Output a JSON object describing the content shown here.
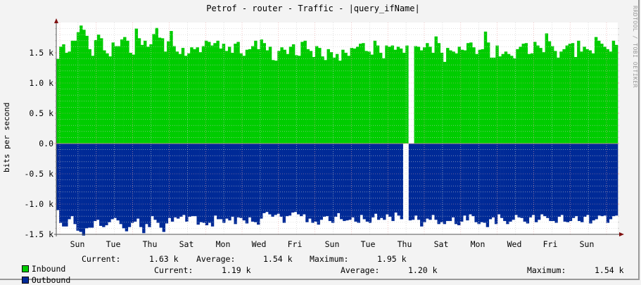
{
  "title": "Petrof - router - Traffic - |query_ifName|",
  "watermark": "RRDTOOL / TOBI OETIKER",
  "colors": {
    "inbound": "#00cc00",
    "outbound": "#002a97",
    "grid_major": "#e8a0a0",
    "grid_minor": "#cccccc",
    "axis": "#555555",
    "arrow": "#801010"
  },
  "legend": {
    "inbound": {
      "label": "Inbound",
      "current_label": "Current:",
      "current": "1.63 k",
      "average_label": "Average:",
      "average": "1.54 k",
      "maximum_label": "Maximum:",
      "maximum": "1.95 k"
    },
    "outbound": {
      "label": "Outbound",
      "current_label": "Current:",
      "current": "1.19 k",
      "average_label": "Average:",
      "average": "1.20 k",
      "maximum_label": "Maximum:",
      "maximum": "1.54 k"
    }
  },
  "chart_data": {
    "type": "area",
    "title": "Petrof - router - Traffic - |query_ifName|",
    "xlabel": "",
    "ylabel": "bits per second",
    "ylim": [
      -1500,
      1950
    ],
    "grid": true,
    "legend_position": "bottom",
    "y_ticks": [
      "1.5 k",
      "1.0 k",
      "0.5 k",
      "0.0",
      "-0.5 k",
      "-1.0 k",
      "-1.5 k"
    ],
    "y_tick_values": [
      1500,
      1000,
      500,
      0,
      -500,
      -1000,
      -1500
    ],
    "x_ticks": [
      "Sun",
      "Tue",
      "Thu",
      "Sat",
      "Mon",
      "Wed",
      "Fri",
      "Sun",
      "Tue",
      "Thu",
      "Sat",
      "Mon",
      "Wed",
      "Fri",
      "Sun"
    ],
    "gap_note": "data gap between Tue and Thu (second week)",
    "series": [
      {
        "name": "Inbound",
        "color": "#00cc00",
        "values": [
          1400,
          1600,
          1640,
          1500,
          1520,
          1700,
          1700,
          1840,
          1950,
          1880,
          1780,
          1560,
          1450,
          1710,
          1800,
          1740,
          1540,
          1490,
          1440,
          1670,
          1610,
          1610,
          1720,
          1760,
          1700,
          1500,
          1470,
          1900,
          1740,
          1630,
          1700,
          1600,
          1640,
          1810,
          1910,
          1750,
          1740,
          1520,
          1690,
          1860,
          1610,
          1520,
          1480,
          1580,
          1450,
          1490,
          1590,
          1560,
          1590,
          1510,
          1610,
          1700,
          1680,
          1620,
          1660,
          1700,
          1570,
          1650,
          1530,
          1600,
          1500,
          1650,
          1680,
          1490,
          1450,
          1550,
          1560,
          1610,
          1700,
          1560,
          1720,
          1660,
          1540,
          1600,
          1380,
          1370,
          1530,
          1590,
          1550,
          1480,
          1600,
          1640,
          1460,
          1450,
          1680,
          1700,
          1560,
          1530,
          1430,
          1610,
          1580,
          1440,
          1380,
          1560,
          1510,
          1420,
          1480,
          1370,
          1550,
          1500,
          1450,
          1580,
          1570,
          1600,
          1650,
          1660,
          1530,
          1520,
          1470,
          1700,
          1620,
          1500,
          1410,
          1620,
          1600,
          1620,
          1550,
          1600,
          1570,
          1500,
          1620,
          0,
          0,
          1610,
          1600,
          1540,
          1590,
          1660,
          1600,
          1500,
          1770,
          1660,
          1500,
          1350,
          1580,
          1540,
          1520,
          1490,
          1600,
          1550,
          1540,
          1660,
          1670,
          1590,
          1480,
          1550,
          1560,
          1850,
          1670,
          1420,
          1420,
          1620,
          1440,
          1480,
          1520,
          1480,
          1450,
          1410,
          1560,
          1600,
          1650,
          1660,
          1480,
          1490,
          1680,
          1620,
          1580,
          1510,
          1820,
          1690,
          1610,
          1530,
          1420,
          1520,
          1560,
          1620,
          1650,
          1660,
          1430,
          1700,
          1520,
          1600,
          1560,
          1540,
          1490,
          1760,
          1700,
          1650,
          1600,
          1560,
          1520,
          1700,
          1630
        ]
      },
      {
        "name": "Outbound",
        "color": "#002a97",
        "values": [
          -1100,
          -1310,
          -1370,
          -1370,
          -1250,
          -1200,
          -1330,
          -1440,
          -1460,
          -1520,
          -1400,
          -1390,
          -1390,
          -1280,
          -1260,
          -1360,
          -1380,
          -1350,
          -1300,
          -1250,
          -1230,
          -1270,
          -1330,
          -1400,
          -1450,
          -1380,
          -1310,
          -1290,
          -1240,
          -1380,
          -1480,
          -1330,
          -1380,
          -1200,
          -1260,
          -1310,
          -1390,
          -1460,
          -1320,
          -1230,
          -1290,
          -1220,
          -1240,
          -1210,
          -1180,
          -1290,
          -1210,
          -1200,
          -1200,
          -1340,
          -1300,
          -1310,
          -1350,
          -1310,
          -1370,
          -1190,
          -1250,
          -1250,
          -1310,
          -1240,
          -1270,
          -1210,
          -1330,
          -1220,
          -1230,
          -1270,
          -1320,
          -1220,
          -1290,
          -1300,
          -1340,
          -1240,
          -1150,
          -1130,
          -1170,
          -1210,
          -1180,
          -1160,
          -1210,
          -1310,
          -1200,
          -1190,
          -1140,
          -1130,
          -1170,
          -1200,
          -1170,
          -1300,
          -1240,
          -1310,
          -1290,
          -1340,
          -1260,
          -1210,
          -1200,
          -1280,
          -1310,
          -1210,
          -1150,
          -1250,
          -1280,
          -1270,
          -1260,
          -1220,
          -1290,
          -1310,
          -1180,
          -1250,
          -1290,
          -1310,
          -1220,
          -1160,
          -1260,
          -1230,
          -1260,
          -1170,
          -1210,
          -1280,
          -1140,
          -1190,
          -1250,
          0,
          0,
          -1270,
          -1260,
          -1190,
          -1260,
          -1370,
          -1300,
          -1240,
          -1260,
          -1180,
          -1260,
          -1330,
          -1300,
          -1330,
          -1280,
          -1280,
          -1220,
          -1330,
          -1350,
          -1290,
          -1190,
          -1270,
          -1170,
          -1200,
          -1300,
          -1330,
          -1300,
          -1310,
          -1380,
          -1250,
          -1220,
          -1330,
          -1170,
          -1230,
          -1280,
          -1330,
          -1290,
          -1260,
          -1180,
          -1220,
          -1230,
          -1290,
          -1320,
          -1220,
          -1180,
          -1300,
          -1260,
          -1170,
          -1200,
          -1230,
          -1280,
          -1280,
          -1310,
          -1210,
          -1180,
          -1290,
          -1300,
          -1280,
          -1230,
          -1200,
          -1280,
          -1300,
          -1210,
          -1180,
          -1320,
          -1270,
          -1250,
          -1190,
          -1200,
          -1190,
          -1310,
          -1250,
          -1200,
          -1190
        ]
      }
    ]
  }
}
